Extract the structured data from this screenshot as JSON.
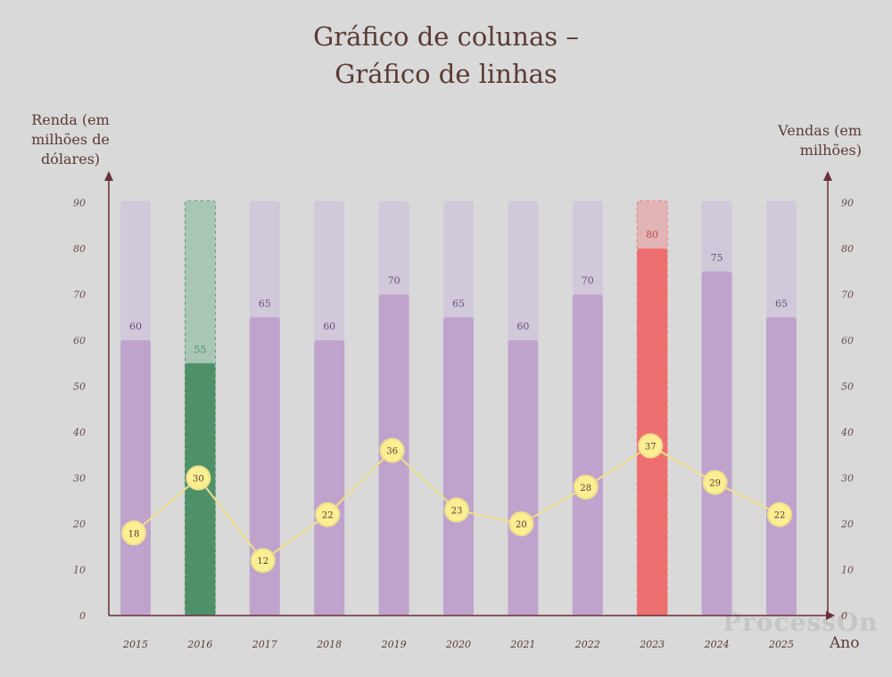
{
  "chart_data": {
    "type": "bar",
    "title_line1": "Gráfico de colunas –",
    "title_line2": "Gráfico de linhas",
    "ylabel_left": "Renda (em milhões de dólares)",
    "ylabel_right": "Vendas (em milhões)",
    "xlabel": "Ano",
    "categories": [
      "2015",
      "2016",
      "2017",
      "2018",
      "2019",
      "2020",
      "2021",
      "2022",
      "2023",
      "2024",
      "2025"
    ],
    "ylim": [
      0,
      90
    ],
    "yticks": [
      0,
      10,
      20,
      30,
      40,
      50,
      60,
      70,
      80,
      90
    ],
    "series": [
      {
        "type": "bar",
        "axis": "left",
        "values": [
          60,
          55,
          65,
          60,
          70,
          65,
          60,
          70,
          80,
          75,
          65
        ],
        "background_max": 90
      },
      {
        "type": "line",
        "axis": "right",
        "values": [
          18,
          30,
          12,
          22,
          36,
          23,
          20,
          28,
          37,
          29,
          22
        ]
      }
    ],
    "highlights": {
      "2016": "#4e9169",
      "2023": "#ee6f6f"
    },
    "colors": {
      "bar": "#bfa3cd",
      "bar_bg": "#d1c9da",
      "bar_label": "#6b4f7a",
      "highlight_green_bg": "#a9c6b5",
      "highlight_green_label": "#4e9169",
      "highlight_red_bg": "#e3b4b5",
      "highlight_red_label": "#c24a4a",
      "line": "#efe08b",
      "point_fill": "#fbef93",
      "point_stroke": "#efe08b",
      "axis": "#6a2e3a"
    },
    "grid": false,
    "legend": "none"
  },
  "watermark": "ProcessOn"
}
